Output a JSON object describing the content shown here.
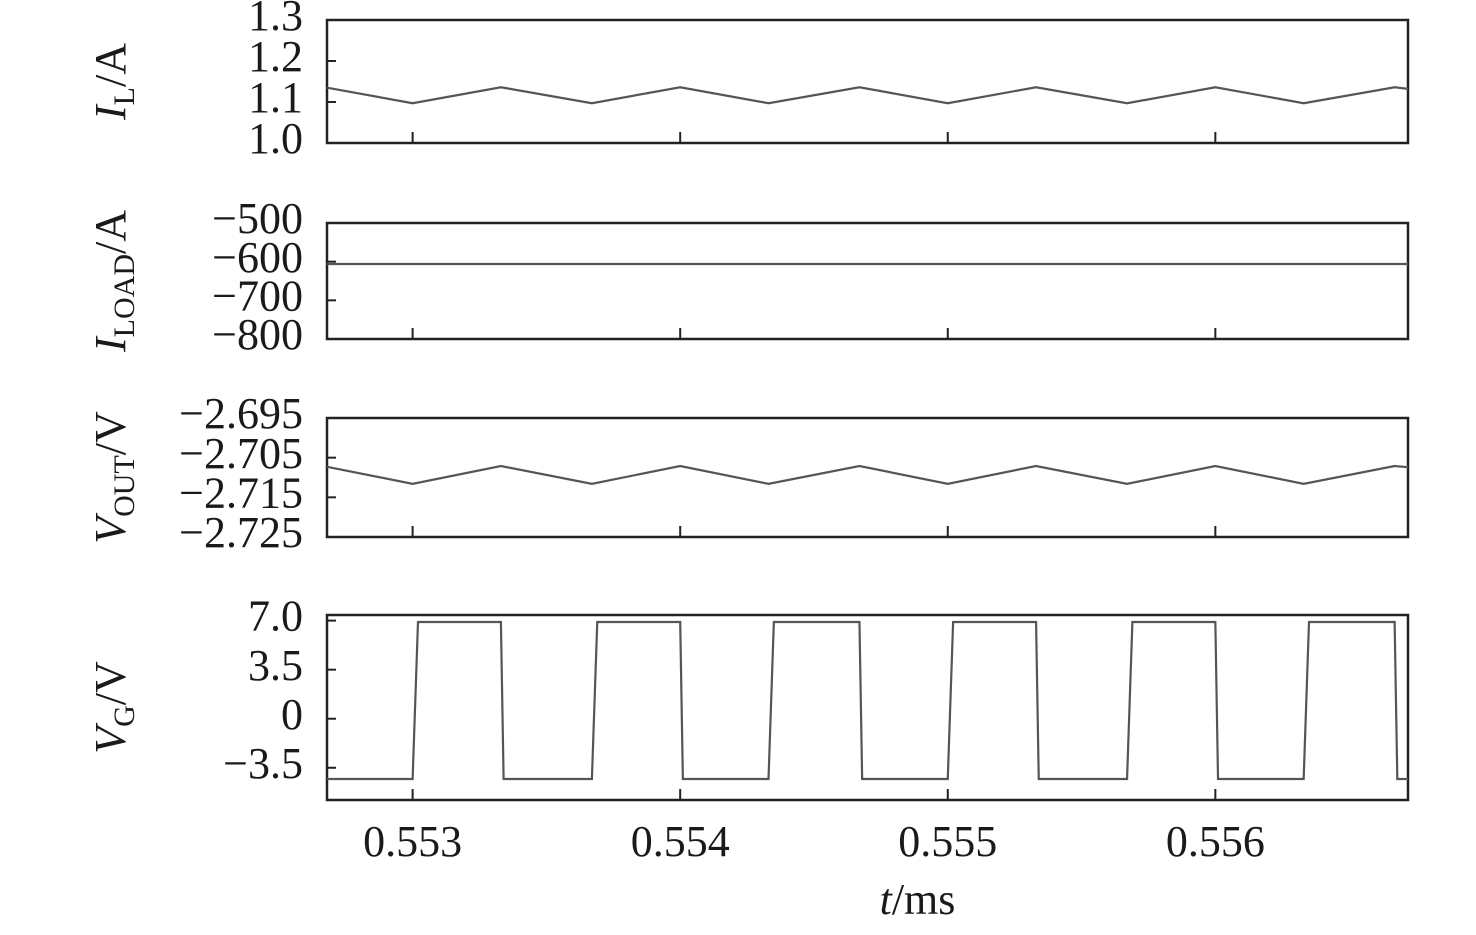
{
  "chart_data": [
    {
      "type": "line",
      "ylabel": {
        "symbol": "I",
        "subscript": "L",
        "unit": "/A"
      },
      "x": [
        0.55268,
        0.553,
        0.55333,
        0.55367,
        0.554,
        0.55433,
        0.55467,
        0.555,
        0.55533,
        0.55567,
        0.556,
        0.55633,
        0.55667,
        0.55672
      ],
      "values": [
        1.135,
        1.097,
        1.136,
        1.097,
        1.136,
        1.097,
        1.136,
        1.097,
        1.136,
        1.097,
        1.136,
        1.097,
        1.136,
        1.132
      ],
      "color": "#555555",
      "xlim": [
        0.55268,
        0.55672
      ],
      "ylim": [
        1.0,
        1.3
      ],
      "yticks": [
        {
          "value": 1.0,
          "label": "1.0"
        },
        1.1,
        1.2,
        1.3
      ]
    },
    {
      "type": "line",
      "ylabel": {
        "symbol": "I",
        "subscript": "LOAD",
        "unit": "/A"
      },
      "x": [
        0.55268,
        0.55672
      ],
      "values": [
        -606,
        -606
      ],
      "color": "#555555",
      "xlim": [
        0.55268,
        0.55672
      ],
      "ylim": [
        -800,
        -500
      ],
      "yticks": [
        {
          "value": -800,
          "label": "−800"
        },
        {
          "value": -700,
          "label": "−700"
        },
        {
          "value": -600,
          "label": "−600"
        },
        {
          "value": -500,
          "label": "−500"
        }
      ]
    },
    {
      "type": "line",
      "ylabel": {
        "symbol": "V",
        "subscript": "OUT",
        "unit": "/V"
      },
      "x": [
        0.55268,
        0.553,
        0.55333,
        0.55367,
        0.554,
        0.55433,
        0.55467,
        0.555,
        0.55533,
        0.55567,
        0.556,
        0.55633,
        0.55667,
        0.55672
      ],
      "values": [
        -2.7073,
        -2.7116,
        -2.7071,
        -2.7116,
        -2.7071,
        -2.7116,
        -2.7071,
        -2.7116,
        -2.7071,
        -2.7116,
        -2.7071,
        -2.7116,
        -2.7071,
        -2.7074
      ],
      "color": "#555555",
      "xlim": [
        0.55268,
        0.55672
      ],
      "ylim": [
        -2.725,
        -2.695
      ],
      "yticks": [
        {
          "value": -2.725,
          "label": "−2.725"
        },
        {
          "value": -2.715,
          "label": "−2.715"
        },
        {
          "value": -2.705,
          "label": "−2.705"
        },
        {
          "value": -2.695,
          "label": "−2.695"
        }
      ]
    },
    {
      "type": "line",
      "ylabel": {
        "symbol": "V",
        "subscript": "G",
        "unit": "/V"
      },
      "xlabel": {
        "symbol": "t",
        "unit": "/ms"
      },
      "x": [
        0.55268,
        0.553,
        0.55302,
        0.55333,
        0.55334,
        0.55367,
        0.55369,
        0.554,
        0.55401,
        0.55433,
        0.55435,
        0.55467,
        0.55468,
        0.555,
        0.55502,
        0.55533,
        0.55534,
        0.55567,
        0.55569,
        0.556,
        0.55601,
        0.55633,
        0.55635,
        0.55667,
        0.55668,
        0.55672
      ],
      "values": [
        -4.3,
        -4.3,
        6.9,
        6.9,
        -4.3,
        -4.3,
        6.9,
        6.9,
        -4.3,
        -4.3,
        6.9,
        6.9,
        -4.3,
        -4.3,
        6.9,
        6.9,
        -4.3,
        -4.3,
        6.9,
        6.9,
        -4.3,
        -4.3,
        6.9,
        6.9,
        -4.3,
        -4.3
      ],
      "color": "#555555",
      "xlim": [
        0.55268,
        0.55672
      ],
      "ylim": [
        -5.8,
        7.4
      ],
      "yticks": [
        {
          "value": -3.5,
          "label": "−3.5"
        },
        0,
        3.5,
        {
          "value": 7.0,
          "label": "7.0"
        }
      ],
      "xticks": [
        0.553,
        0.554,
        0.555,
        0.556
      ]
    }
  ]
}
